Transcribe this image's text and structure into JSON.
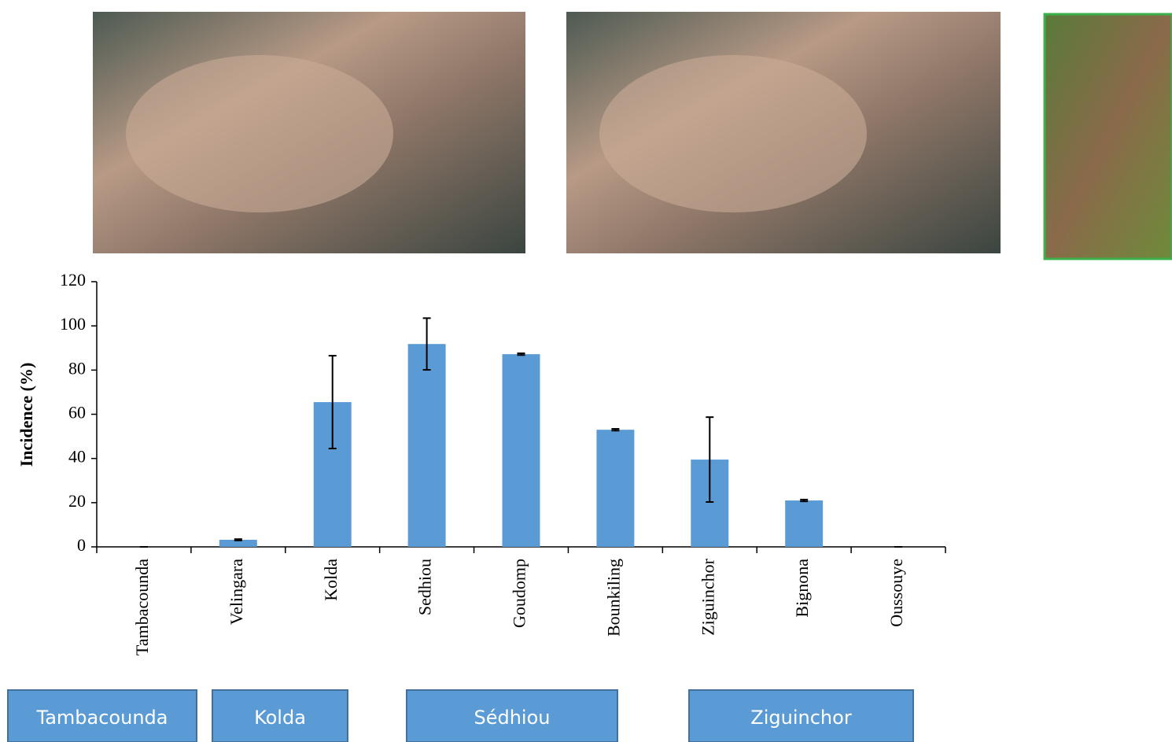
{
  "chart_data": {
    "type": "bar",
    "y_label": "Incidence (%)",
    "categories": [
      "Tambacounda",
      "Velingara",
      "Kolda",
      "Sedhiou",
      "Goudomp",
      "Bounkiling",
      "Ziguinchor",
      "Bignona",
      "Oussouye"
    ],
    "series": [
      {
        "color": "#5b9bd5",
        "values": [
          0,
          3.2,
          65.5,
          91.8,
          87.2,
          53,
          39.5,
          21,
          0
        ],
        "errors": [
          0,
          0.3,
          21,
          11.7,
          0.4,
          0.4,
          19.2,
          0.4,
          0
        ]
      }
    ],
    "ylim": [
      0,
      120
    ],
    "yticks": [
      0,
      20,
      40,
      60,
      80,
      100,
      120
    ],
    "regions": [
      "Tambacounda",
      "Kolda",
      "Sédhiou",
      "Ziguinchor"
    ]
  }
}
